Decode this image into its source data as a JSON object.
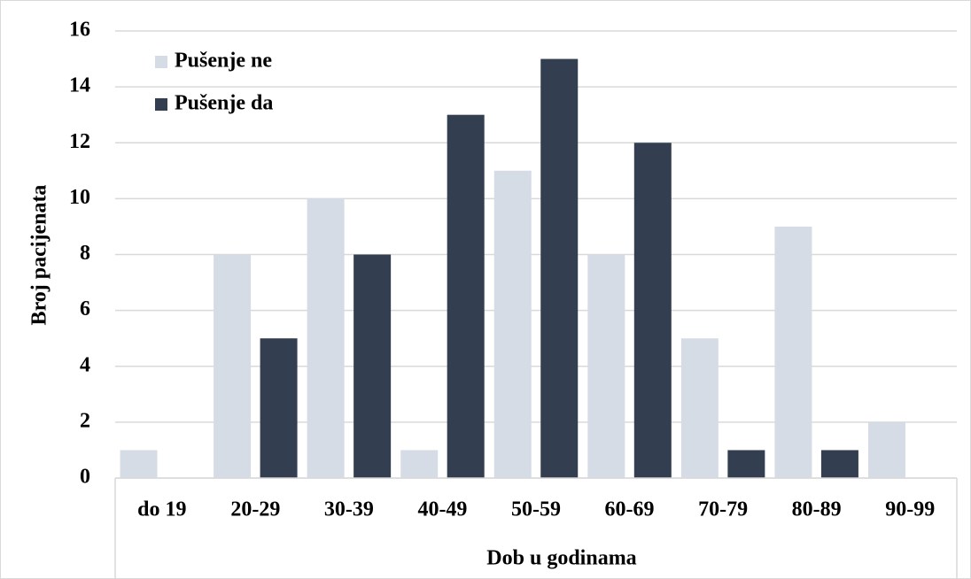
{
  "chart_data": {
    "type": "bar",
    "categories": [
      "do 19",
      "20-29",
      "30-39",
      "40-49",
      "50-59",
      "60-69",
      "70-79",
      "80-89",
      "90-99"
    ],
    "series": [
      {
        "name": "Pušenje ne",
        "color": "#d6dce5",
        "values": [
          1,
          8,
          10,
          1,
          11,
          8,
          5,
          9,
          2
        ]
      },
      {
        "name": "Pušenje da",
        "color": "#333f50",
        "values": [
          0,
          5,
          8,
          13,
          15,
          12,
          1,
          1,
          0
        ]
      }
    ],
    "xlabel": "Dob u godinama",
    "ylabel": "Broj pacijenata",
    "ylim": [
      0,
      16
    ],
    "yticks": [
      0,
      2,
      4,
      6,
      8,
      10,
      12,
      14,
      16
    ],
    "grid": true,
    "legend": "upper left"
  }
}
